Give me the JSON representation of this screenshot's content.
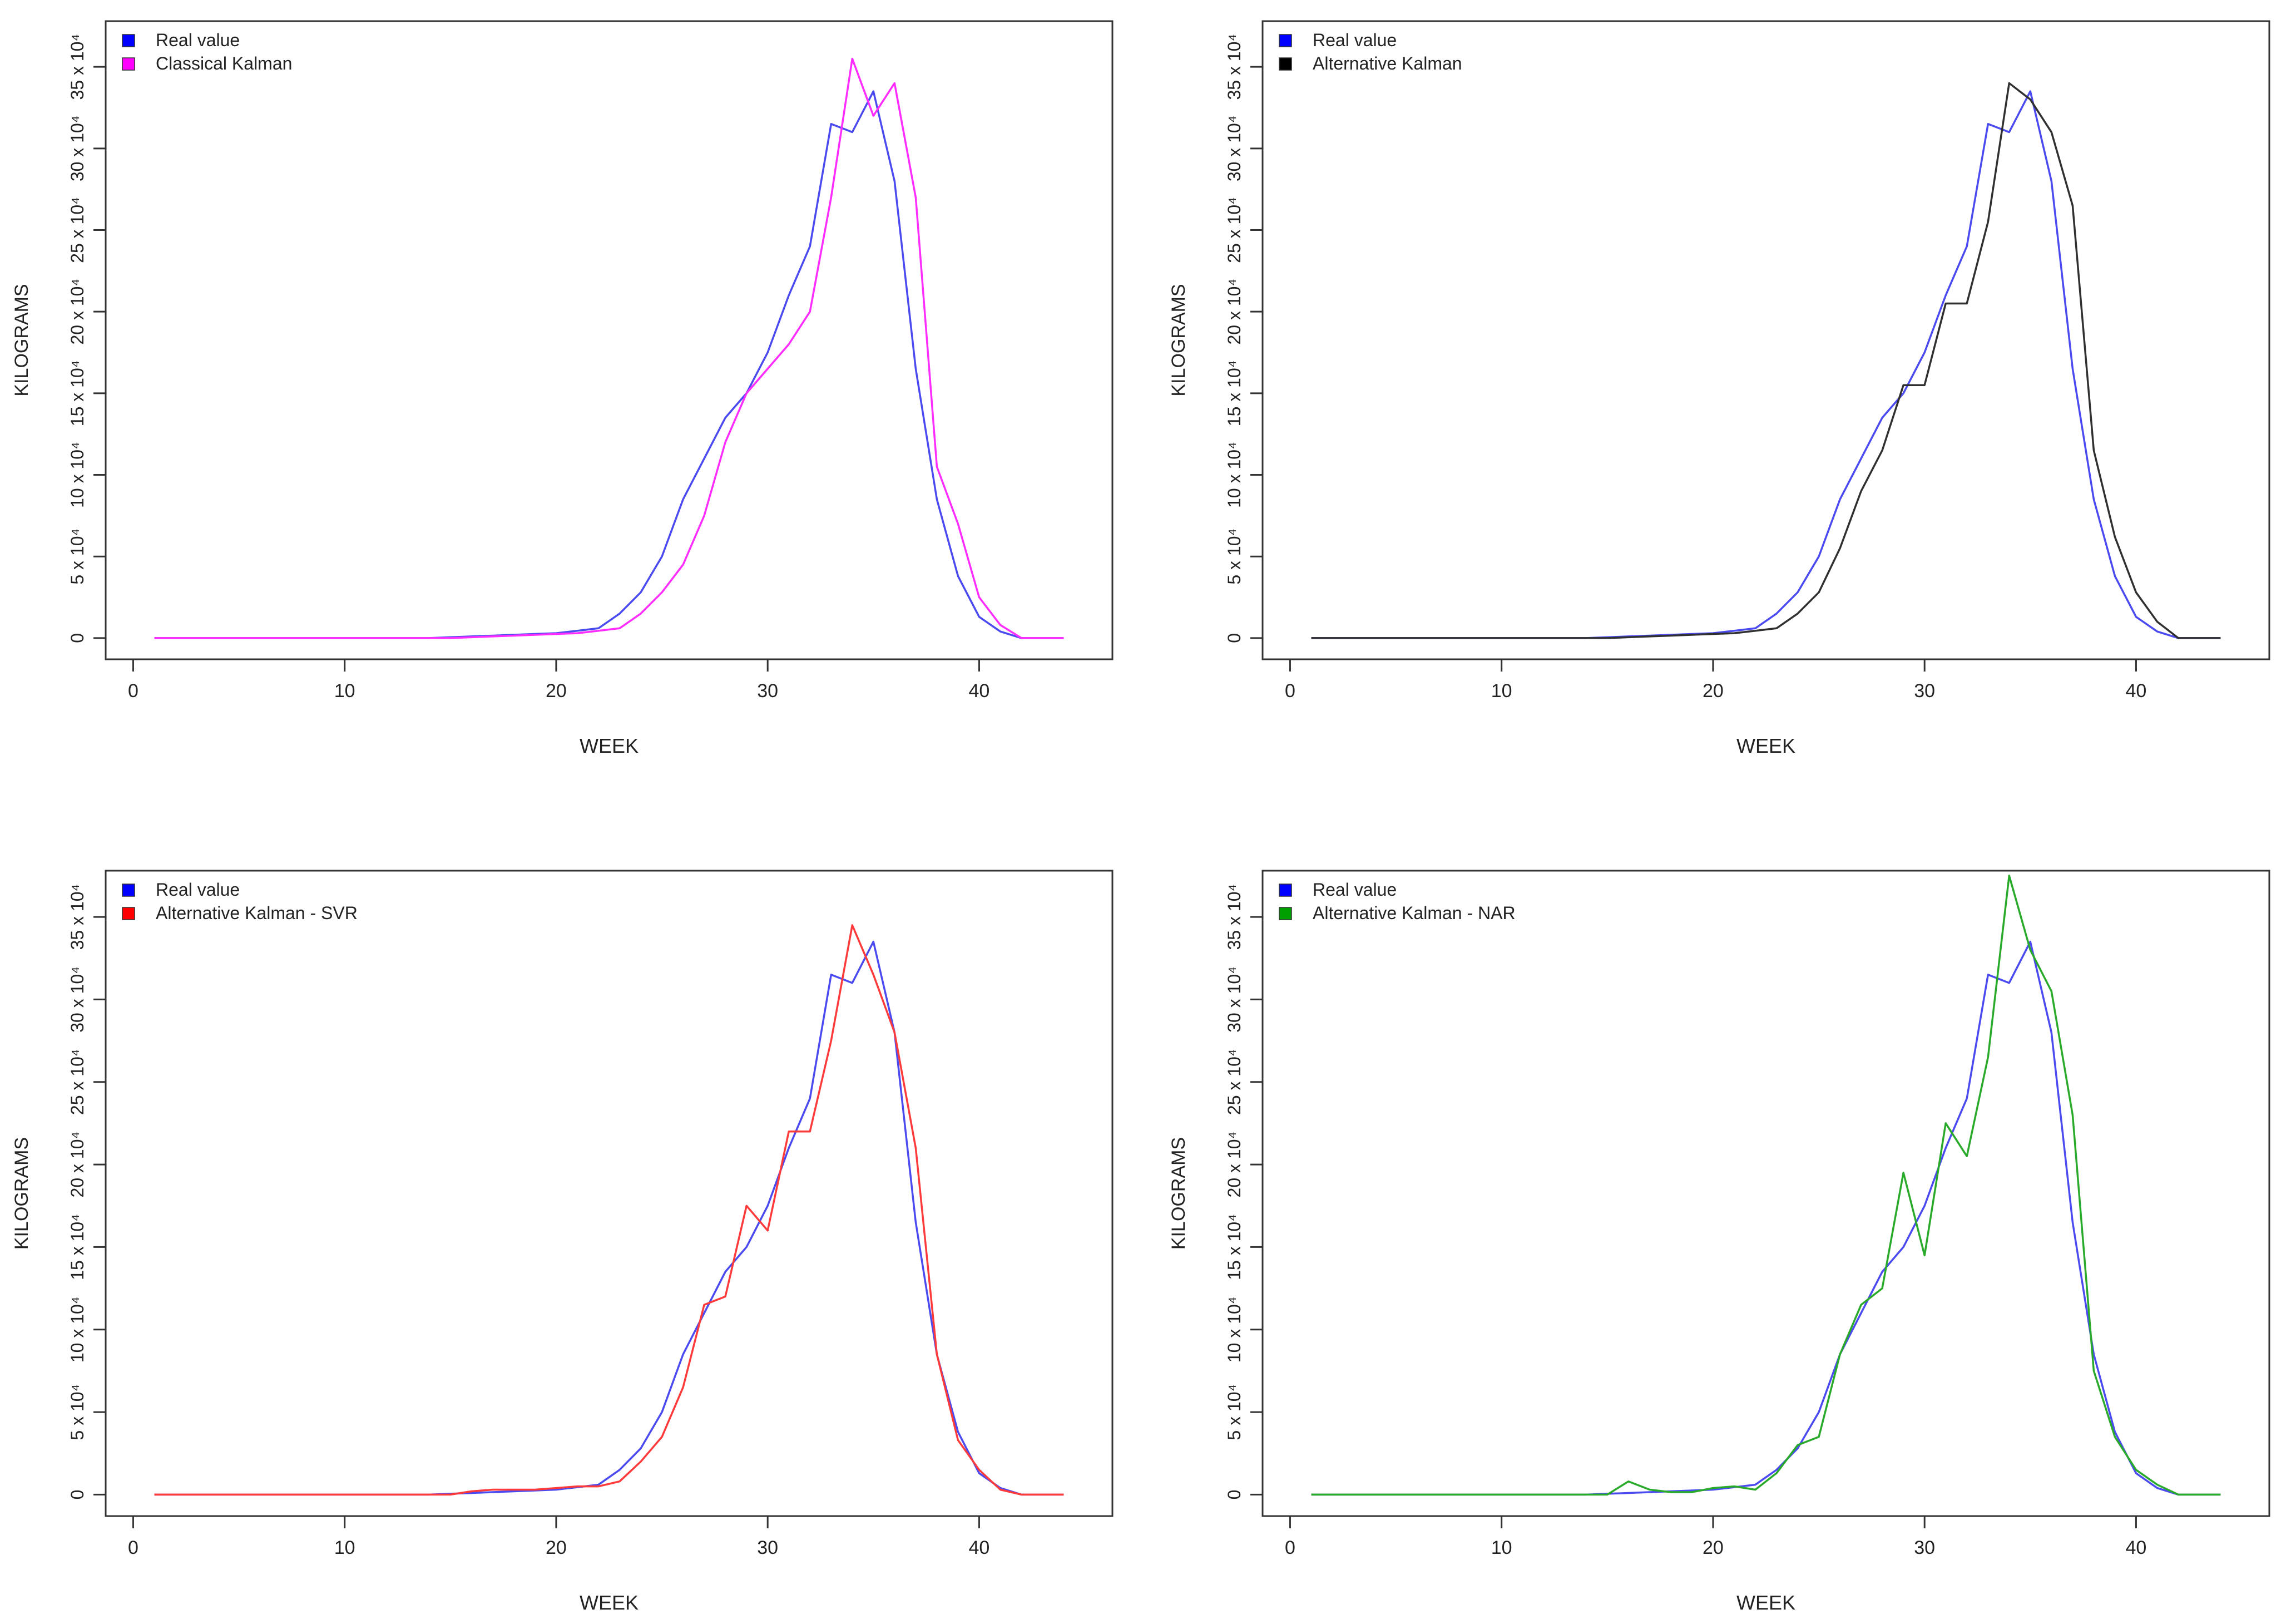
{
  "palette": {
    "real": "#4a4af0",
    "legend_real": "#0000ff"
  },
  "tick_labels_y": [
    "0",
    "5 x 10⁴",
    "10 x 10⁴",
    "15 x 10⁴",
    "20 x 10⁴",
    "25 x 10⁴",
    "30 x 10⁴",
    "35 x 10⁴"
  ],
  "chart_data": [
    {
      "type": "line",
      "title": "",
      "xlabel": "WEEK",
      "ylabel": "KILOGRAMS",
      "xlim": [
        1,
        44
      ],
      "ylim": [
        0,
        360000
      ],
      "xticks": [
        0,
        10,
        20,
        30,
        40
      ],
      "yticks": [
        0,
        50000,
        100000,
        150000,
        200000,
        250000,
        300000,
        350000
      ],
      "legend": {
        "position": "top-left"
      },
      "x": [
        1,
        2,
        3,
        4,
        5,
        6,
        7,
        8,
        9,
        10,
        11,
        12,
        13,
        14,
        15,
        16,
        17,
        18,
        19,
        20,
        21,
        22,
        23,
        24,
        25,
        26,
        27,
        28,
        29,
        30,
        31,
        32,
        33,
        34,
        35,
        36,
        37,
        38,
        39,
        40,
        41,
        42,
        43,
        44
      ],
      "series": [
        {
          "name": "Real value",
          "color": "#4a4af0",
          "legend_color": "#0000ff",
          "values": [
            0,
            0,
            0,
            0,
            0,
            0,
            0,
            0,
            0,
            0,
            0,
            0,
            0,
            0,
            500,
            1000,
            1500,
            2000,
            2500,
            3000,
            4500,
            6000,
            15000,
            28000,
            50000,
            85000,
            110000,
            135000,
            150000,
            175000,
            210000,
            240000,
            315000,
            310000,
            335000,
            280000,
            165000,
            85000,
            38000,
            13000,
            4000,
            0,
            0,
            0
          ]
        },
        {
          "name": "Classical Kalman",
          "color": "#ff2cff",
          "legend_color": "#ff00ff",
          "values": [
            0,
            0,
            0,
            0,
            0,
            0,
            0,
            0,
            0,
            0,
            0,
            0,
            0,
            0,
            0,
            500,
            1000,
            1500,
            2000,
            2500,
            3000,
            4500,
            6000,
            15000,
            28000,
            45000,
            75000,
            120000,
            150000,
            165000,
            180000,
            200000,
            270000,
            355000,
            320000,
            340000,
            270000,
            105000,
            70000,
            25000,
            8000,
            0,
            0,
            0
          ]
        }
      ]
    },
    {
      "type": "line",
      "title": "",
      "xlabel": "WEEK",
      "ylabel": "KILOGRAMS",
      "xlim": [
        1,
        44
      ],
      "ylim": [
        0,
        360000
      ],
      "xticks": [
        0,
        10,
        20,
        30,
        40
      ],
      "yticks": [
        0,
        50000,
        100000,
        150000,
        200000,
        250000,
        300000,
        350000
      ],
      "legend": {
        "position": "top-left"
      },
      "x": [
        1,
        2,
        3,
        4,
        5,
        6,
        7,
        8,
        9,
        10,
        11,
        12,
        13,
        14,
        15,
        16,
        17,
        18,
        19,
        20,
        21,
        22,
        23,
        24,
        25,
        26,
        27,
        28,
        29,
        30,
        31,
        32,
        33,
        34,
        35,
        36,
        37,
        38,
        39,
        40,
        41,
        42,
        43,
        44
      ],
      "series": [
        {
          "name": "Real value",
          "color": "#4a4af0",
          "legend_color": "#0000ff",
          "values": [
            0,
            0,
            0,
            0,
            0,
            0,
            0,
            0,
            0,
            0,
            0,
            0,
            0,
            0,
            500,
            1000,
            1500,
            2000,
            2500,
            3000,
            4500,
            6000,
            15000,
            28000,
            50000,
            85000,
            110000,
            135000,
            150000,
            175000,
            210000,
            240000,
            315000,
            310000,
            335000,
            280000,
            165000,
            85000,
            38000,
            13000,
            4000,
            0,
            0,
            0
          ]
        },
        {
          "name": "Alternative Kalman",
          "color": "#303030",
          "legend_color": "#000000",
          "values": [
            0,
            0,
            0,
            0,
            0,
            0,
            0,
            0,
            0,
            0,
            0,
            0,
            0,
            0,
            0,
            500,
            1000,
            1500,
            2000,
            2500,
            3000,
            4500,
            6000,
            15000,
            28000,
            55000,
            90000,
            115000,
            155000,
            155000,
            205000,
            205000,
            255000,
            340000,
            330000,
            310000,
            265000,
            115000,
            62000,
            28000,
            10000,
            0,
            0,
            0
          ]
        }
      ]
    },
    {
      "type": "line",
      "title": "",
      "xlabel": "WEEK",
      "ylabel": "KILOGRAMS",
      "xlim": [
        1,
        44
      ],
      "ylim": [
        0,
        360000
      ],
      "xticks": [
        0,
        10,
        20,
        30,
        40
      ],
      "yticks": [
        0,
        50000,
        100000,
        150000,
        200000,
        250000,
        300000,
        350000
      ],
      "legend": {
        "position": "top-left"
      },
      "x": [
        1,
        2,
        3,
        4,
        5,
        6,
        7,
        8,
        9,
        10,
        11,
        12,
        13,
        14,
        15,
        16,
        17,
        18,
        19,
        20,
        21,
        22,
        23,
        24,
        25,
        26,
        27,
        28,
        29,
        30,
        31,
        32,
        33,
        34,
        35,
        36,
        37,
        38,
        39,
        40,
        41,
        42,
        43,
        44
      ],
      "series": [
        {
          "name": "Real value",
          "color": "#4a4af0",
          "legend_color": "#0000ff",
          "values": [
            0,
            0,
            0,
            0,
            0,
            0,
            0,
            0,
            0,
            0,
            0,
            0,
            0,
            0,
            500,
            1000,
            1500,
            2000,
            2500,
            3000,
            4500,
            6000,
            15000,
            28000,
            50000,
            85000,
            110000,
            135000,
            150000,
            175000,
            210000,
            240000,
            315000,
            310000,
            335000,
            280000,
            165000,
            85000,
            38000,
            13000,
            4000,
            0,
            0,
            0
          ]
        },
        {
          "name": "Alternative Kalman - SVR",
          "color": "#ff3a3a",
          "legend_color": "#ff0000",
          "values": [
            0,
            0,
            0,
            0,
            0,
            0,
            0,
            0,
            0,
            0,
            0,
            0,
            0,
            0,
            0,
            2000,
            3000,
            3000,
            3000,
            4000,
            5000,
            5000,
            8000,
            20000,
            35000,
            65000,
            115000,
            120000,
            175000,
            160000,
            220000,
            220000,
            275000,
            345000,
            315000,
            280000,
            210000,
            85000,
            33000,
            15000,
            3000,
            0,
            0,
            0
          ]
        }
      ]
    },
    {
      "type": "line",
      "title": "",
      "xlabel": "WEEK",
      "ylabel": "KILOGRAMS",
      "xlim": [
        1,
        44
      ],
      "ylim": [
        0,
        360000
      ],
      "xticks": [
        0,
        10,
        20,
        30,
        40
      ],
      "yticks": [
        0,
        50000,
        100000,
        150000,
        200000,
        250000,
        300000,
        350000
      ],
      "legend": {
        "position": "top-left"
      },
      "x": [
        1,
        2,
        3,
        4,
        5,
        6,
        7,
        8,
        9,
        10,
        11,
        12,
        13,
        14,
        15,
        16,
        17,
        18,
        19,
        20,
        21,
        22,
        23,
        24,
        25,
        26,
        27,
        28,
        29,
        30,
        31,
        32,
        33,
        34,
        35,
        36,
        37,
        38,
        39,
        40,
        41,
        42,
        43,
        44
      ],
      "series": [
        {
          "name": "Real value",
          "color": "#4a4af0",
          "legend_color": "#0000ff",
          "values": [
            0,
            0,
            0,
            0,
            0,
            0,
            0,
            0,
            0,
            0,
            0,
            0,
            0,
            0,
            500,
            1000,
            1500,
            2000,
            2500,
            3000,
            4500,
            6000,
            15000,
            28000,
            50000,
            85000,
            110000,
            135000,
            150000,
            175000,
            210000,
            240000,
            315000,
            310000,
            335000,
            280000,
            165000,
            85000,
            38000,
            13000,
            4000,
            0,
            0,
            0
          ]
        },
        {
          "name": "Alternative Kalman - NAR",
          "color": "#2aaa2a",
          "legend_color": "#00a000",
          "values": [
            0,
            0,
            0,
            0,
            0,
            0,
            0,
            0,
            0,
            0,
            0,
            0,
            0,
            0,
            0,
            8000,
            3000,
            1500,
            1500,
            4000,
            5000,
            3000,
            13000,
            30000,
            35000,
            85000,
            115000,
            125000,
            195000,
            145000,
            225000,
            205000,
            265000,
            375000,
            330000,
            305000,
            230000,
            75000,
            35000,
            15000,
            6000,
            0,
            0,
            0
          ]
        }
      ]
    }
  ]
}
